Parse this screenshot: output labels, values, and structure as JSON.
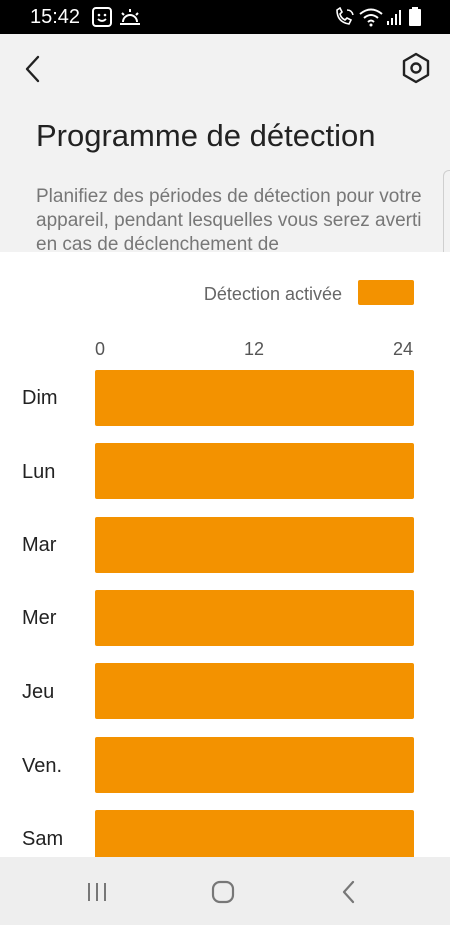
{
  "status_bar": {
    "time": "15:42",
    "icons": [
      "smiley-icon",
      "weather-icon",
      "wifi-call-icon",
      "wifi-icon",
      "signal-icon",
      "battery-icon"
    ]
  },
  "app_bar": {
    "back_icon": "chevron-left-icon",
    "settings_icon": "hexagon-settings-icon"
  },
  "page": {
    "title": "Programme de détection",
    "description": "Planifiez des périodes de détection pour votre appareil, pendant lesquelles vous serez averti en cas de déclenchement de"
  },
  "legend": {
    "label": "Détection activée",
    "color": "#f39200"
  },
  "schedule": {
    "axis_ticks": [
      "0",
      "12",
      "24"
    ],
    "axis_range_hours": [
      0,
      24
    ],
    "days": [
      {
        "label": "Dim",
        "start": 0,
        "end": 24
      },
      {
        "label": "Lun",
        "start": 0,
        "end": 24
      },
      {
        "label": "Mar",
        "start": 0,
        "end": 24
      },
      {
        "label": "Mer",
        "start": 0,
        "end": 24
      },
      {
        "label": "Jeu",
        "start": 0,
        "end": 24
      },
      {
        "label": "Ven.",
        "start": 0,
        "end": 24
      },
      {
        "label": "Sam",
        "start": 0,
        "end": 24
      }
    ]
  },
  "nav_bar": {
    "icons": [
      "recent-apps-icon",
      "home-icon",
      "back-icon"
    ]
  },
  "colors": {
    "accent": "#f39200",
    "background": "#f2f2f2",
    "card": "#ffffff"
  }
}
